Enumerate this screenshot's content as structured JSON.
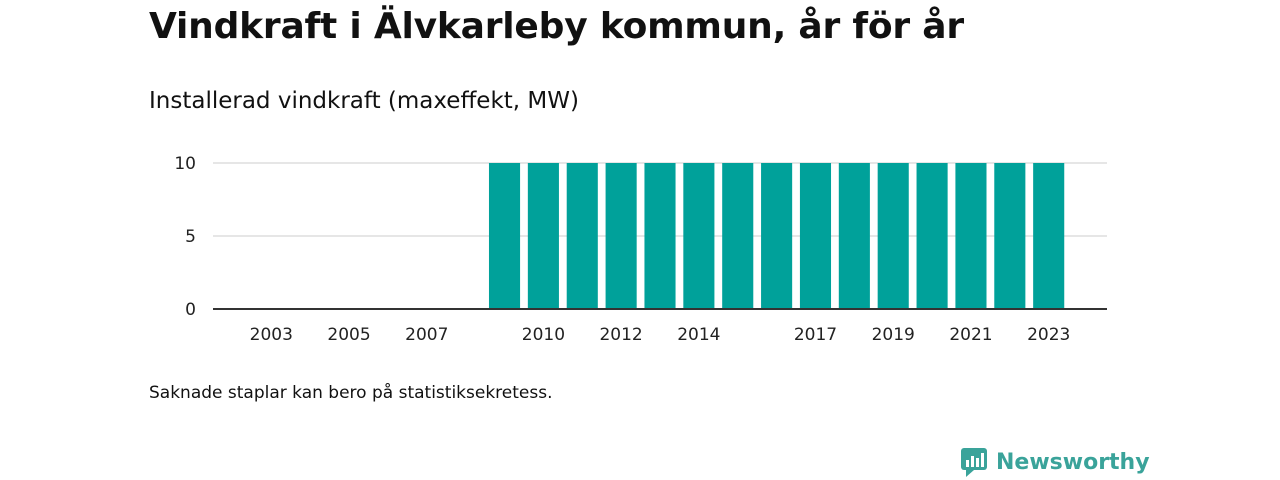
{
  "title": "Vindkraft i Älvkarleby kommun, år för år",
  "subtitle": "Installerad vindkraft (maxeffekt, MW)",
  "footnote": "Saknade staplar kan bero på statistiksekretess.",
  "brand": {
    "name": "Newsworthy",
    "icon": "newsworthy-logo-icon",
    "color": "#3aa39a"
  },
  "chart_data": {
    "type": "bar",
    "title": "",
    "xlabel": "",
    "ylabel": "",
    "x": [
      2002,
      2003,
      2004,
      2005,
      2006,
      2007,
      2008,
      2009,
      2010,
      2011,
      2012,
      2013,
      2014,
      2015,
      2016,
      2017,
      2018,
      2019,
      2020,
      2021,
      2022,
      2023
    ],
    "values": [
      null,
      null,
      null,
      null,
      null,
      null,
      null,
      10,
      10,
      10,
      10,
      10,
      10,
      10,
      10,
      10,
      10,
      10,
      10,
      10,
      10,
      10
    ],
    "x_tick_labels": [
      "2003",
      "2005",
      "2007",
      "2010",
      "2012",
      "2014",
      "2017",
      "2019",
      "2021",
      "2023"
    ],
    "y_ticks": [
      0,
      5,
      10
    ],
    "ylim": [
      0,
      10
    ],
    "grid": "horizontal",
    "bar_color": "#00a19a"
  }
}
